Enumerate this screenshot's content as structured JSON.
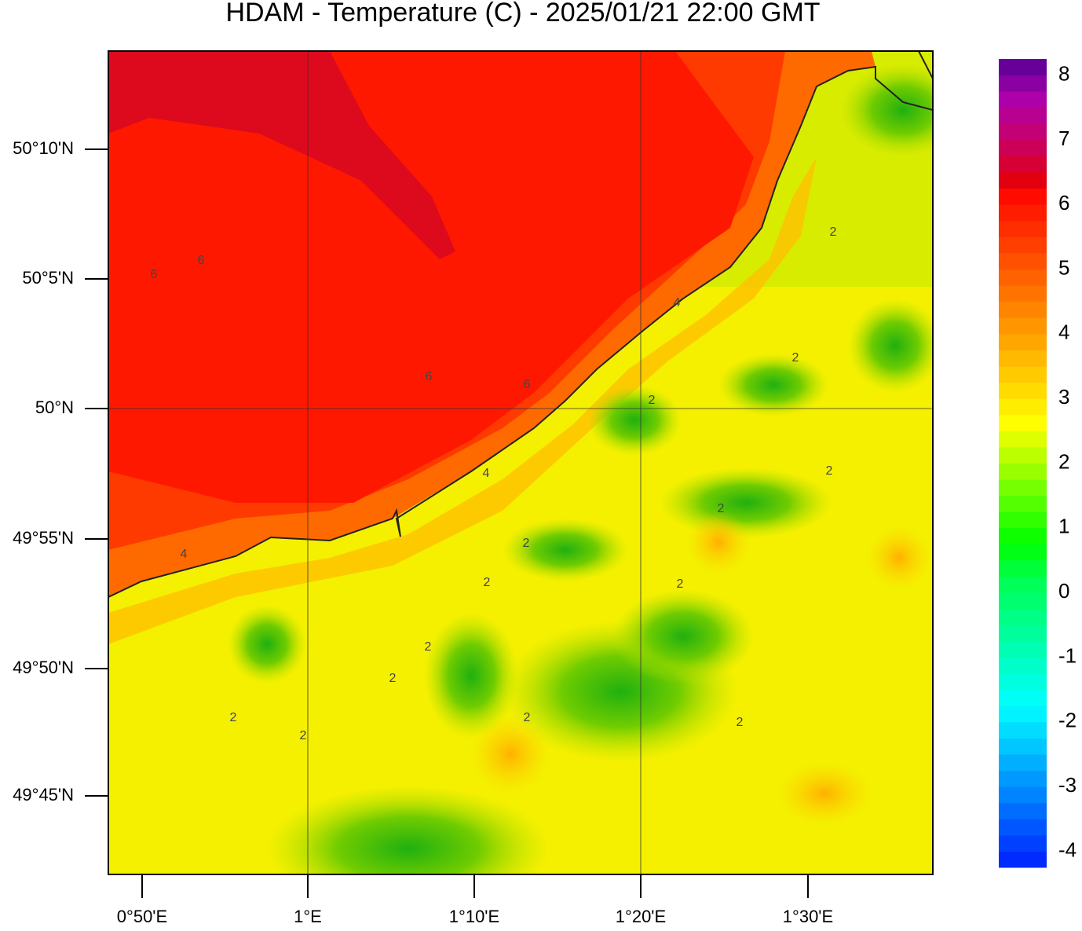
{
  "title": "HDAM - Temperature (C)  -  2025/01/21  22:00 GMT",
  "lat_labels": [
    "50°10'N",
    "50°5'N",
    "50°N",
    "49°55'N",
    "49°50'N",
    "49°45'N"
  ],
  "lon_labels": [
    "0°50'E",
    "1°E",
    "1°10'E",
    "1°20'E",
    "1°30'E"
  ],
  "colorbar": {
    "range": [
      -4.25,
      8.25
    ],
    "ticks": [
      8,
      7,
      6,
      5,
      4,
      3,
      2,
      1,
      0,
      -1,
      -2,
      -3,
      -4
    ]
  },
  "contour_labels": [
    "6",
    "6",
    "6",
    "6",
    "4",
    "4",
    "4",
    "2",
    "2",
    "2",
    "2",
    "2",
    "2",
    "2",
    "2",
    "2",
    "2",
    "2",
    "2",
    "2",
    "2"
  ]
}
